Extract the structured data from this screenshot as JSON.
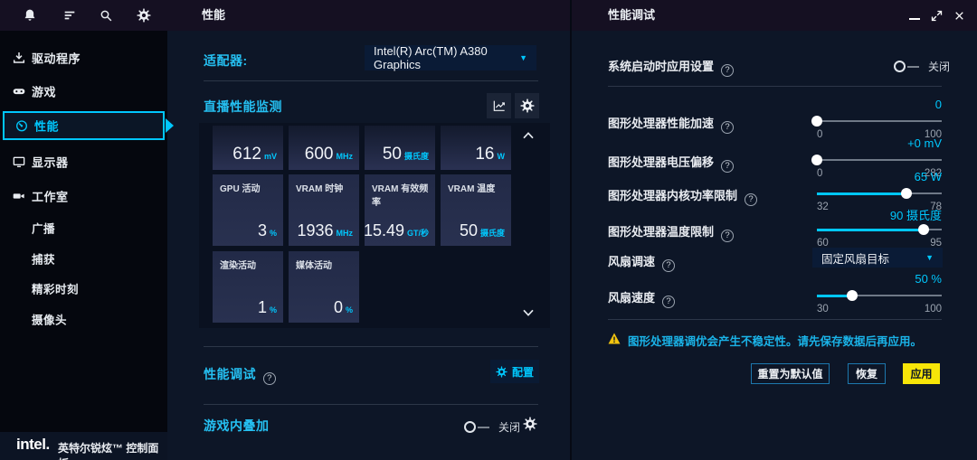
{
  "accent_color": "#00c7fd",
  "apply_color": "#f7e508",
  "sidebar": {
    "top_icons": [
      "bell",
      "menu",
      "search",
      "settings"
    ],
    "items": [
      {
        "icon": "download",
        "label": "驱动程序",
        "selected": false
      },
      {
        "icon": "gamepad",
        "label": "游戏",
        "selected": false
      },
      {
        "icon": "gauge",
        "label": "性能",
        "selected": true
      },
      {
        "icon": "monitor",
        "label": "显示器",
        "selected": false
      },
      {
        "icon": "video-camera",
        "label": "工作室",
        "selected": false
      }
    ],
    "subitems": [
      "广播",
      "捕获",
      "精彩时刻",
      "摄像头"
    ],
    "footer": {
      "logo": "intel.",
      "label": "英特尔锐炫™ 控制面板"
    }
  },
  "performance_panel": {
    "title": "性能",
    "adapter_label": "适配器:",
    "adapter_value": "Intel(R) Arc(TM) A380 Graphics",
    "monitor_title": "直播性能监测",
    "tiles_row1": [
      {
        "value": "612",
        "unit": "mV"
      },
      {
        "value": "600",
        "unit": "MHz"
      },
      {
        "value": "50",
        "unit": "摄氏度"
      },
      {
        "value": "16",
        "unit": "W"
      }
    ],
    "tiles_row2": [
      {
        "label": "GPU 活动",
        "value": "3",
        "unit": "%"
      },
      {
        "label": "VRAM 时钟",
        "value": "1936",
        "unit": "MHz"
      },
      {
        "label": "VRAM 有效频率",
        "value": "15.49",
        "unit": "GT/秒"
      },
      {
        "label": "VRAM 温度",
        "value": "50",
        "unit": "摄氏度"
      }
    ],
    "tiles_row3": [
      {
        "label": "渲染活动",
        "value": "1",
        "unit": "%"
      },
      {
        "label": "媒体活动",
        "value": "0",
        "unit": "%"
      }
    ],
    "tuning_title": "性能调试",
    "configure_label": "配置",
    "overlay_title": "游戏内叠加",
    "overlay_state": "关闭"
  },
  "tuning_panel": {
    "title": "性能调试",
    "startup_label": "系统启动时应用设置",
    "startup_state": "关闭",
    "sliders": [
      {
        "label": "图形处理器性能加速",
        "value": "0",
        "min": "0",
        "max": "100",
        "pct": 0
      },
      {
        "label": "图形处理器电压偏移",
        "value": "+0 mV",
        "min": "0",
        "max": "282",
        "pct": 0
      },
      {
        "label": "图形处理器内核功率限制",
        "value": "65 W",
        "min": "32",
        "max": "78",
        "pct": 71.7
      },
      {
        "label": "图形处理器温度限制",
        "value": "90 摄氏度",
        "min": "60",
        "max": "95",
        "pct": 85.7
      },
      {
        "label": "风扇速度",
        "value": "50 %",
        "min": "30",
        "max": "100",
        "pct": 28.6
      }
    ],
    "fan_mode_label": "风扇调速",
    "fan_mode_value": "固定风扇目标",
    "warning": "图形处理器调优会产生不稳定性。请先保存数据后再应用。",
    "reset_label": "重置为默认值",
    "restore_label": "恢复",
    "apply_label": "应用"
  }
}
